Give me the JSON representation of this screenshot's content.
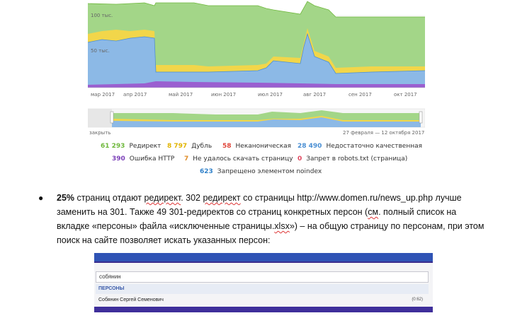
{
  "chart_data": [
    {
      "type": "area",
      "stacked": true,
      "x": [
        "мар 2017",
        "апр 2017",
        "май 2017",
        "июн 2017",
        "июл 2017",
        "авг 2017",
        "сен 2017",
        "окт 2017"
      ],
      "y_tick_labels": [
        "100 тыс.",
        "50 тыс."
      ],
      "series": [
        {
          "name": "Запрещено элементом noindex",
          "color": "#7b3fb8",
          "values": [
            800,
            900,
            1500,
            1300,
            1200,
            1100,
            700,
            600
          ]
        },
        {
          "name": "Недостаточно качественная",
          "color": "#8fb8e4",
          "values": [
            55000,
            57000,
            12000,
            13000,
            24000,
            28000,
            13000,
            14000
          ]
        },
        {
          "name": "Дубль",
          "color": "#f3d54b",
          "values": [
            16000,
            16000,
            6000,
            6000,
            9000,
            9000,
            5000,
            5000
          ]
        },
        {
          "name": "Редирект",
          "color": "#9dd17f",
          "values": [
            34000,
            32000,
            60000,
            60000,
            55000,
            52000,
            56000,
            57000
          ]
        }
      ],
      "grid": true
    },
    {
      "type": "area",
      "title": "",
      "x_range_label": "27 февраля — 12 октября 2017",
      "left_label": "закрыть"
    }
  ],
  "legend": [
    {
      "value": "61 293",
      "label": "Редирект",
      "color": "#6fb83c"
    },
    {
      "value": "8 797",
      "label": "Дубль",
      "color": "#e1b400"
    },
    {
      "value": "58",
      "label": "Неканоническая",
      "color": "#e0463a"
    },
    {
      "value": "28 490",
      "label": "Недостаточно качественная",
      "color": "#4a8fd3"
    },
    {
      "value": "390",
      "label": "Ошибка HTTP",
      "color": "#7b3fb8"
    },
    {
      "value": "7",
      "label": "Не удалось скачать страницу",
      "color": "#e08d2a"
    },
    {
      "value": "0",
      "label": "Запрет в robots.txt (страница)",
      "color": "#e0465e"
    },
    {
      "value": "623",
      "label": "Запрещено элементом noindex",
      "color": "#2f80c9"
    }
  ],
  "doc": {
    "bullet": "●",
    "bold": "25%",
    "t1": " страниц отдают ",
    "u1": "редирект",
    "t2": ". 302 ",
    "u2": "редирект",
    "t3": " со страницы http://www.domen.ru/news_up.php лучше заменить на 301. Также 49 301-редиректов со страниц конкретных персон (",
    "u3": "см",
    "t4": ". полный список на вкладке «персоны» файла «исключенные страницы.",
    "u4": "xlsx",
    "t5": "») – на общую страницу по персонам, при этом поиск на сайте позволяет искать указанных персон:"
  },
  "screenshot": {
    "search_value": "собянин",
    "section": "ПЕРСОНЫ",
    "result": "Собянин Сергей Семенович",
    "result_meta": "(0:62)"
  }
}
